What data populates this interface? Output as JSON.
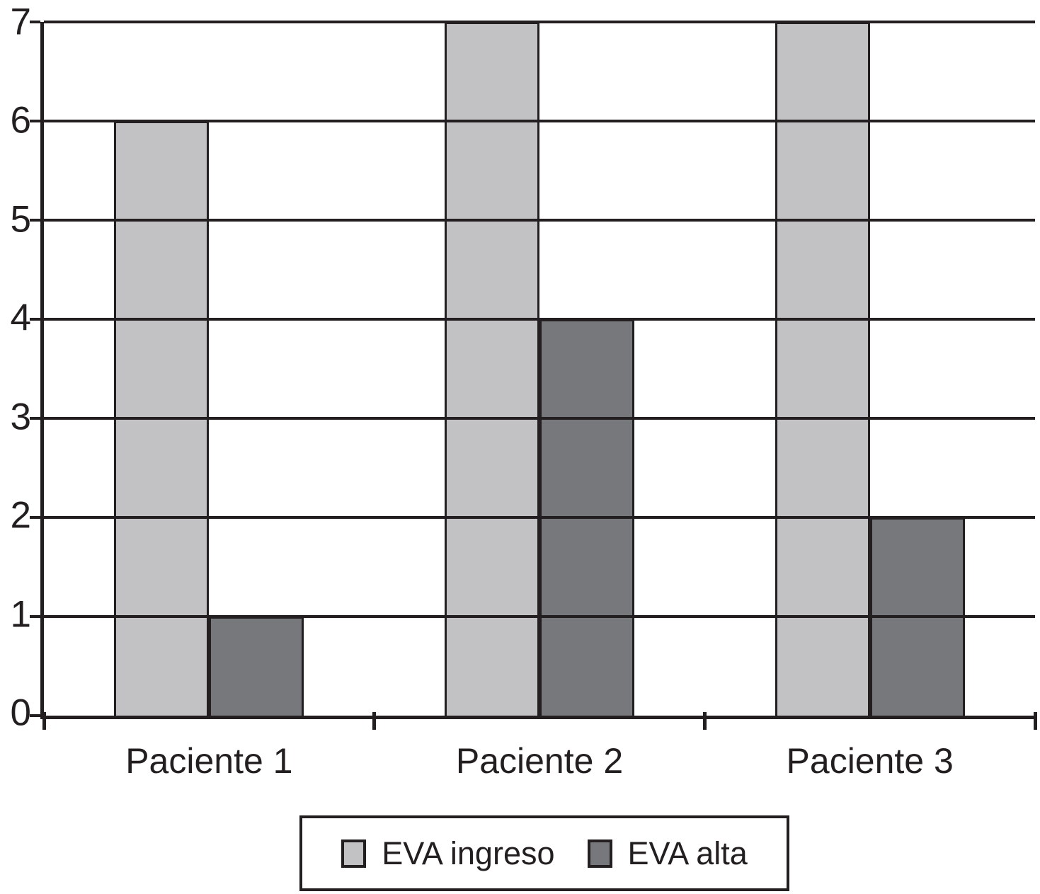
{
  "chart_data": {
    "type": "bar",
    "categories": [
      "Paciente 1",
      "Paciente 2",
      "Paciente 3"
    ],
    "series": [
      {
        "name": "EVA ingreso",
        "values": [
          6,
          7,
          7
        ],
        "color": "#c2c2c4"
      },
      {
        "name": "EVA alta",
        "values": [
          1,
          4,
          2
        ],
        "color": "#77787c"
      }
    ],
    "title": "",
    "xlabel": "",
    "ylabel": "",
    "ylim": [
      0,
      7
    ],
    "y_ticks": [
      0,
      1,
      2,
      3,
      4,
      5,
      6,
      7
    ],
    "grid": "horizontal",
    "legend_position": "bottom",
    "axis_color": "#231f20",
    "background_color": "#ffffff"
  }
}
